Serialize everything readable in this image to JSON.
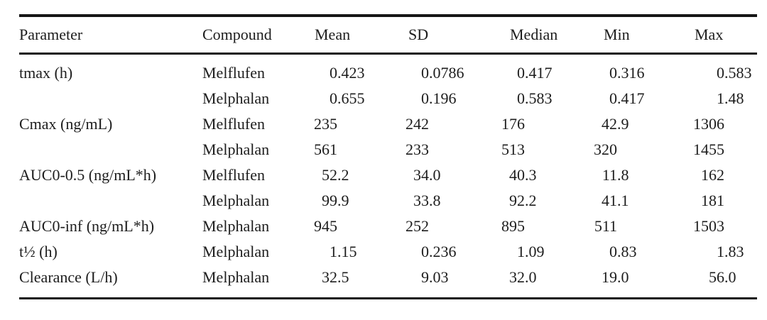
{
  "table": {
    "columns": [
      "Parameter",
      "Compound",
      "Mean",
      "SD",
      "Median",
      "Min",
      "Max"
    ],
    "rows": [
      {
        "parameter": "tmax (h)",
        "compound": "Melflufen",
        "values": [
          "0.423",
          "0.0786",
          "0.417",
          "0.316",
          "0.583"
        ]
      },
      {
        "parameter": "",
        "compound": "Melphalan",
        "values": [
          "0.655",
          "0.196",
          "0.583",
          "0.417",
          "1.48"
        ]
      },
      {
        "parameter": "Cmax (ng/mL)",
        "compound": "Melflufen",
        "values": [
          "235",
          "242",
          "176",
          "42.9",
          "1306"
        ]
      },
      {
        "parameter": "",
        "compound": "Melphalan",
        "values": [
          "561",
          "233",
          "513",
          "320",
          "1455"
        ]
      },
      {
        "parameter": "AUC0-0.5 (ng/mL*h)",
        "compound": "Melflufen",
        "values": [
          "52.2",
          "34.0",
          "40.3",
          "11.8",
          "162"
        ]
      },
      {
        "parameter": "",
        "compound": "Melphalan",
        "values": [
          "99.9",
          "33.8",
          "92.2",
          "41.1",
          "181"
        ]
      },
      {
        "parameter": "AUC0-inf (ng/mL*h)",
        "compound": "Melphalan",
        "values": [
          "945",
          "252",
          "895",
          "511",
          "1503"
        ]
      },
      {
        "parameter": "t½ (h)",
        "compound": "Melphalan",
        "values": [
          "1.15",
          "0.236",
          "1.09",
          "0.83",
          "1.83"
        ]
      },
      {
        "parameter": "Clearance (L/h)",
        "compound": "Melphalan",
        "values": [
          "32.5",
          "9.03",
          "32.0",
          "19.0",
          "56.0"
        ]
      }
    ]
  },
  "colors": {
    "text": "#1d1d1d",
    "rule": "#161616",
    "background": "#ffffff"
  }
}
